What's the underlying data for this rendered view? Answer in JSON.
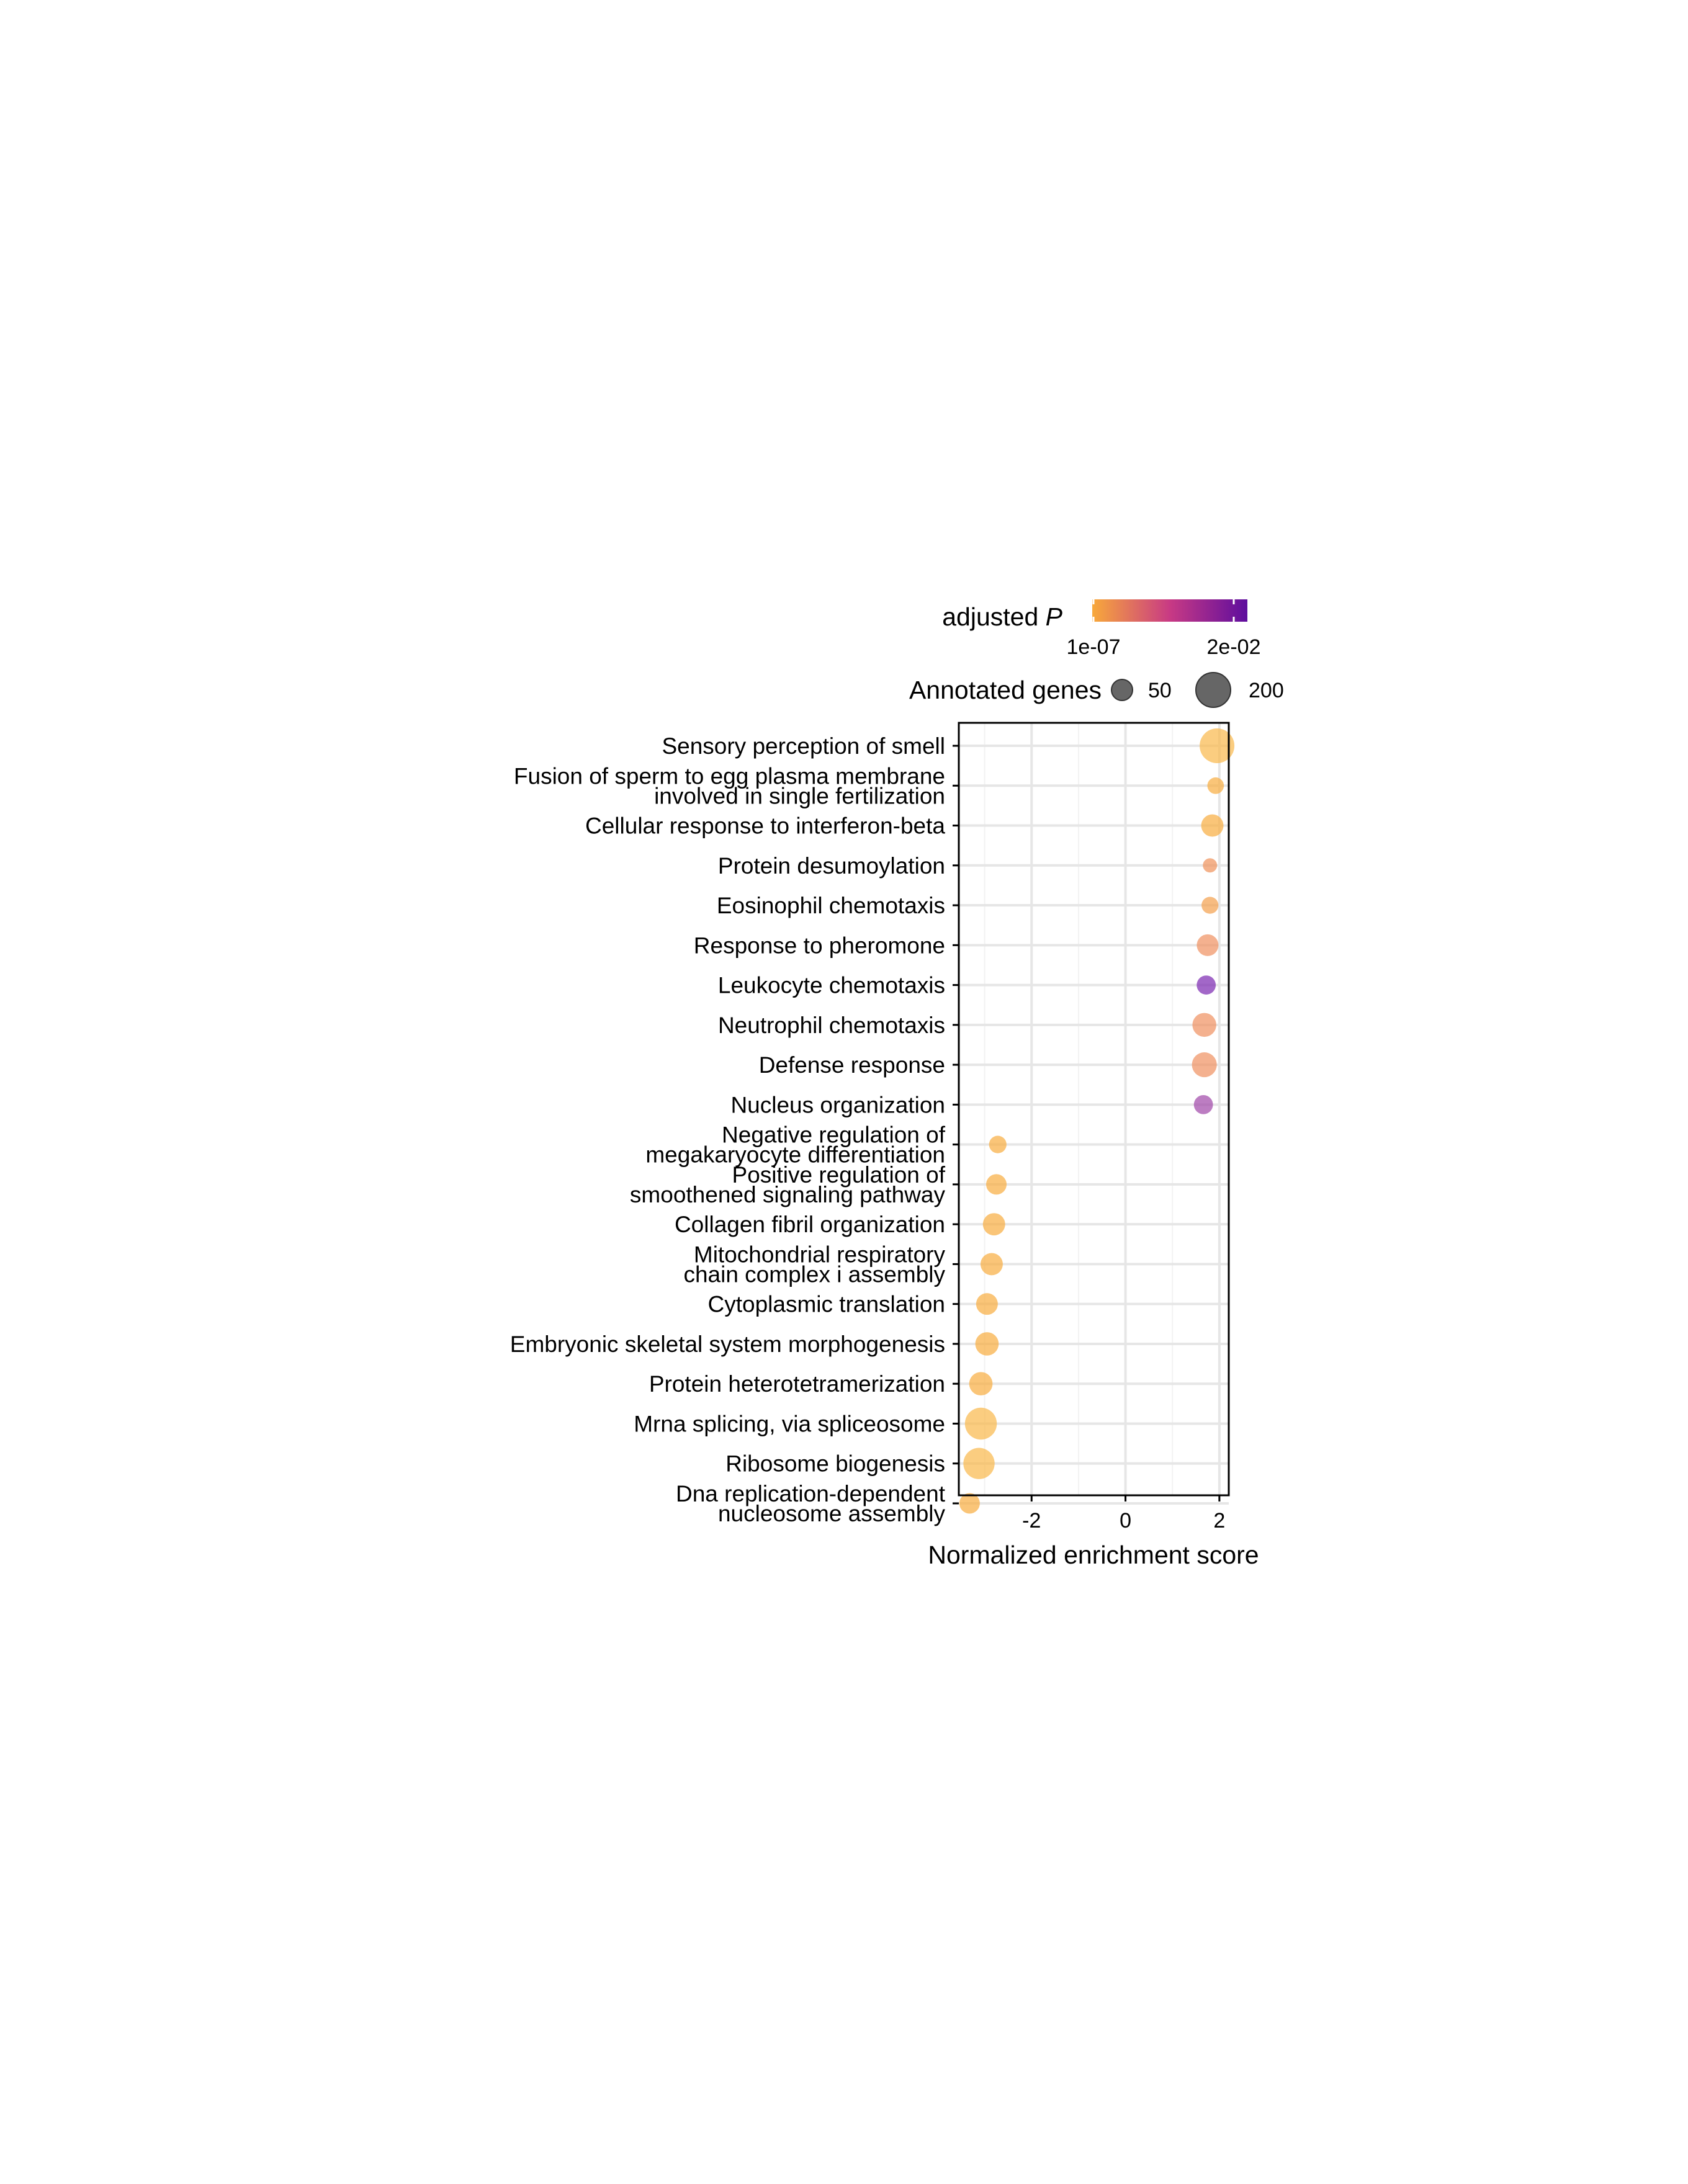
{
  "chart_data": {
    "type": "scatter",
    "title": "",
    "xlabel": "Normalized enrichment score",
    "ylabel": "",
    "xlim": [
      -3.55,
      2.2
    ],
    "x_ticks": [
      "-2",
      "0",
      "2"
    ],
    "x_tick_values": [
      -2,
      0,
      2
    ],
    "grid": true,
    "legend_position": "top",
    "color_legend": {
      "title": "adjusted P",
      "title_plain": "adjusted ",
      "title_italic": "P",
      "low_label": "1e-07",
      "high_label": "2e-02",
      "low_color": "#f8a93a",
      "mid_color": "#c83a84",
      "high_color": "#5e0d9e"
    },
    "size_legend": {
      "title": "Annotated genes",
      "entries": [
        {
          "label": "50",
          "size": 50
        },
        {
          "label": "200",
          "size": 200
        }
      ]
    },
    "points": [
      {
        "term": [
          "Sensory perception of smell"
        ],
        "nes": 1.95,
        "genes": 220,
        "color": "#f9b84a"
      },
      {
        "term": [
          "Fusion of sperm to egg plasma membrane",
          "involved in single fertilization"
        ],
        "nes": 1.92,
        "genes": 20,
        "color": "#f8ad3f"
      },
      {
        "term": [
          "Cellular response to interferon-beta"
        ],
        "nes": 1.85,
        "genes": 60,
        "color": "#f8ad3f"
      },
      {
        "term": [
          "Protein desumoylation"
        ],
        "nes": 1.8,
        "genes": 10,
        "color": "#f0925a"
      },
      {
        "term": [
          "Eosinophil chemotaxis"
        ],
        "nes": 1.8,
        "genes": 22,
        "color": "#f4a04c"
      },
      {
        "term": [
          "Response to pheromone"
        ],
        "nes": 1.75,
        "genes": 55,
        "color": "#ef9060"
      },
      {
        "term": [
          "Leukocyte chemotaxis"
        ],
        "nes": 1.72,
        "genes": 35,
        "color": "#7a27b0"
      },
      {
        "term": [
          "Neutrophil chemotaxis"
        ],
        "nes": 1.68,
        "genes": 75,
        "color": "#ef9060"
      },
      {
        "term": [
          "Defense response"
        ],
        "nes": 1.68,
        "genes": 85,
        "color": "#ef9060"
      },
      {
        "term": [
          "Nucleus organization"
        ],
        "nes": 1.66,
        "genes": 35,
        "color": "#a046a8"
      },
      {
        "term": [
          "Negative regulation of",
          "megakaryocyte differentiation"
        ],
        "nes": -2.72,
        "genes": 25,
        "color": "#f8ad3f"
      },
      {
        "term": [
          "Positive regulation of",
          "smoothened signaling pathway"
        ],
        "nes": -2.75,
        "genes": 45,
        "color": "#f8ad3f"
      },
      {
        "term": [
          "Collagen fibril organization"
        ],
        "nes": -2.8,
        "genes": 60,
        "color": "#f8ad3f"
      },
      {
        "term": [
          "Mitochondrial respiratory",
          "chain complex i assembly"
        ],
        "nes": -2.85,
        "genes": 60,
        "color": "#f8ad3f"
      },
      {
        "term": [
          "Cytoplasmic translation"
        ],
        "nes": -2.95,
        "genes": 55,
        "color": "#f8ad3f"
      },
      {
        "term": [
          "Embryonic skeletal system morphogenesis"
        ],
        "nes": -2.95,
        "genes": 70,
        "color": "#f8ad3f"
      },
      {
        "term": [
          "Protein heterotetramerization"
        ],
        "nes": -3.08,
        "genes": 70,
        "color": "#f8ad3f"
      },
      {
        "term": [
          "Mrna splicing, via spliceosome"
        ],
        "nes": -3.08,
        "genes": 175,
        "color": "#f9b84a"
      },
      {
        "term": [
          "Ribosome biogenesis"
        ],
        "nes": -3.12,
        "genes": 165,
        "color": "#f9b84a"
      },
      {
        "term": [
          "Dna replication-dependent",
          "nucleosome assembly"
        ],
        "nes": -3.32,
        "genes": 45,
        "color": "#f8ad3f"
      }
    ]
  }
}
